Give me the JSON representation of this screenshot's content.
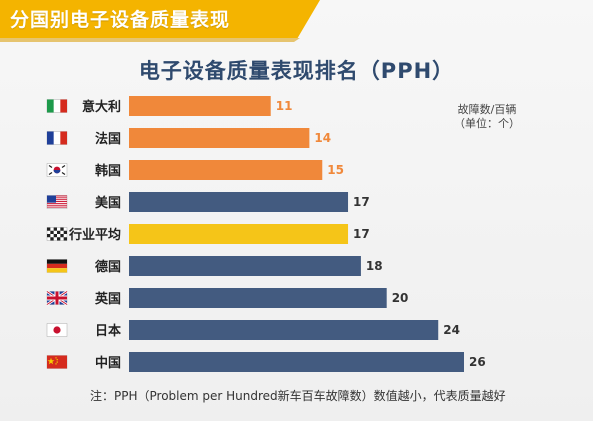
{
  "header": {
    "title": "分国别电子设备质量表现"
  },
  "chart_data": {
    "type": "bar",
    "orientation": "horizontal",
    "title": "电子设备质量表现排名（PPH）",
    "unit_note_line1": "故障数/百辆",
    "unit_note_line2": "（单位：个）",
    "categories": [
      "意大利",
      "法国",
      "韩国",
      "美国",
      "行业平均",
      "德国",
      "英国",
      "日本",
      "中国"
    ],
    "values": [
      11,
      14,
      15,
      17,
      17,
      18,
      20,
      24,
      26
    ],
    "flags": [
      "italy-flag-icon",
      "france-flag-icon",
      "korea-flag-icon",
      "usa-flag-icon",
      "checkered-flag-icon",
      "germany-flag-icon",
      "uk-flag-icon",
      "japan-flag-icon",
      "china-flag-icon"
    ],
    "bar_colors": [
      "#f0883a",
      "#f0883a",
      "#f0883a",
      "#435b80",
      "#f5c518",
      "#435b80",
      "#435b80",
      "#435b80",
      "#435b80"
    ],
    "value_label_colors": [
      "#f0883a",
      "#f0883a",
      "#f0883a",
      "#333333",
      "#333333",
      "#333333",
      "#333333",
      "#333333",
      "#333333"
    ],
    "xlim": [
      0,
      26
    ],
    "grid": false,
    "legend": "none",
    "footnote": "注：PPH（Problem per Hundred新车百车故障数）数值越小，代表质量越好"
  },
  "colors": {
    "banner": "#f4b400",
    "title": "#2f4a6e",
    "orange": "#f0883a",
    "navy": "#435b80",
    "yellow": "#f5c518"
  }
}
